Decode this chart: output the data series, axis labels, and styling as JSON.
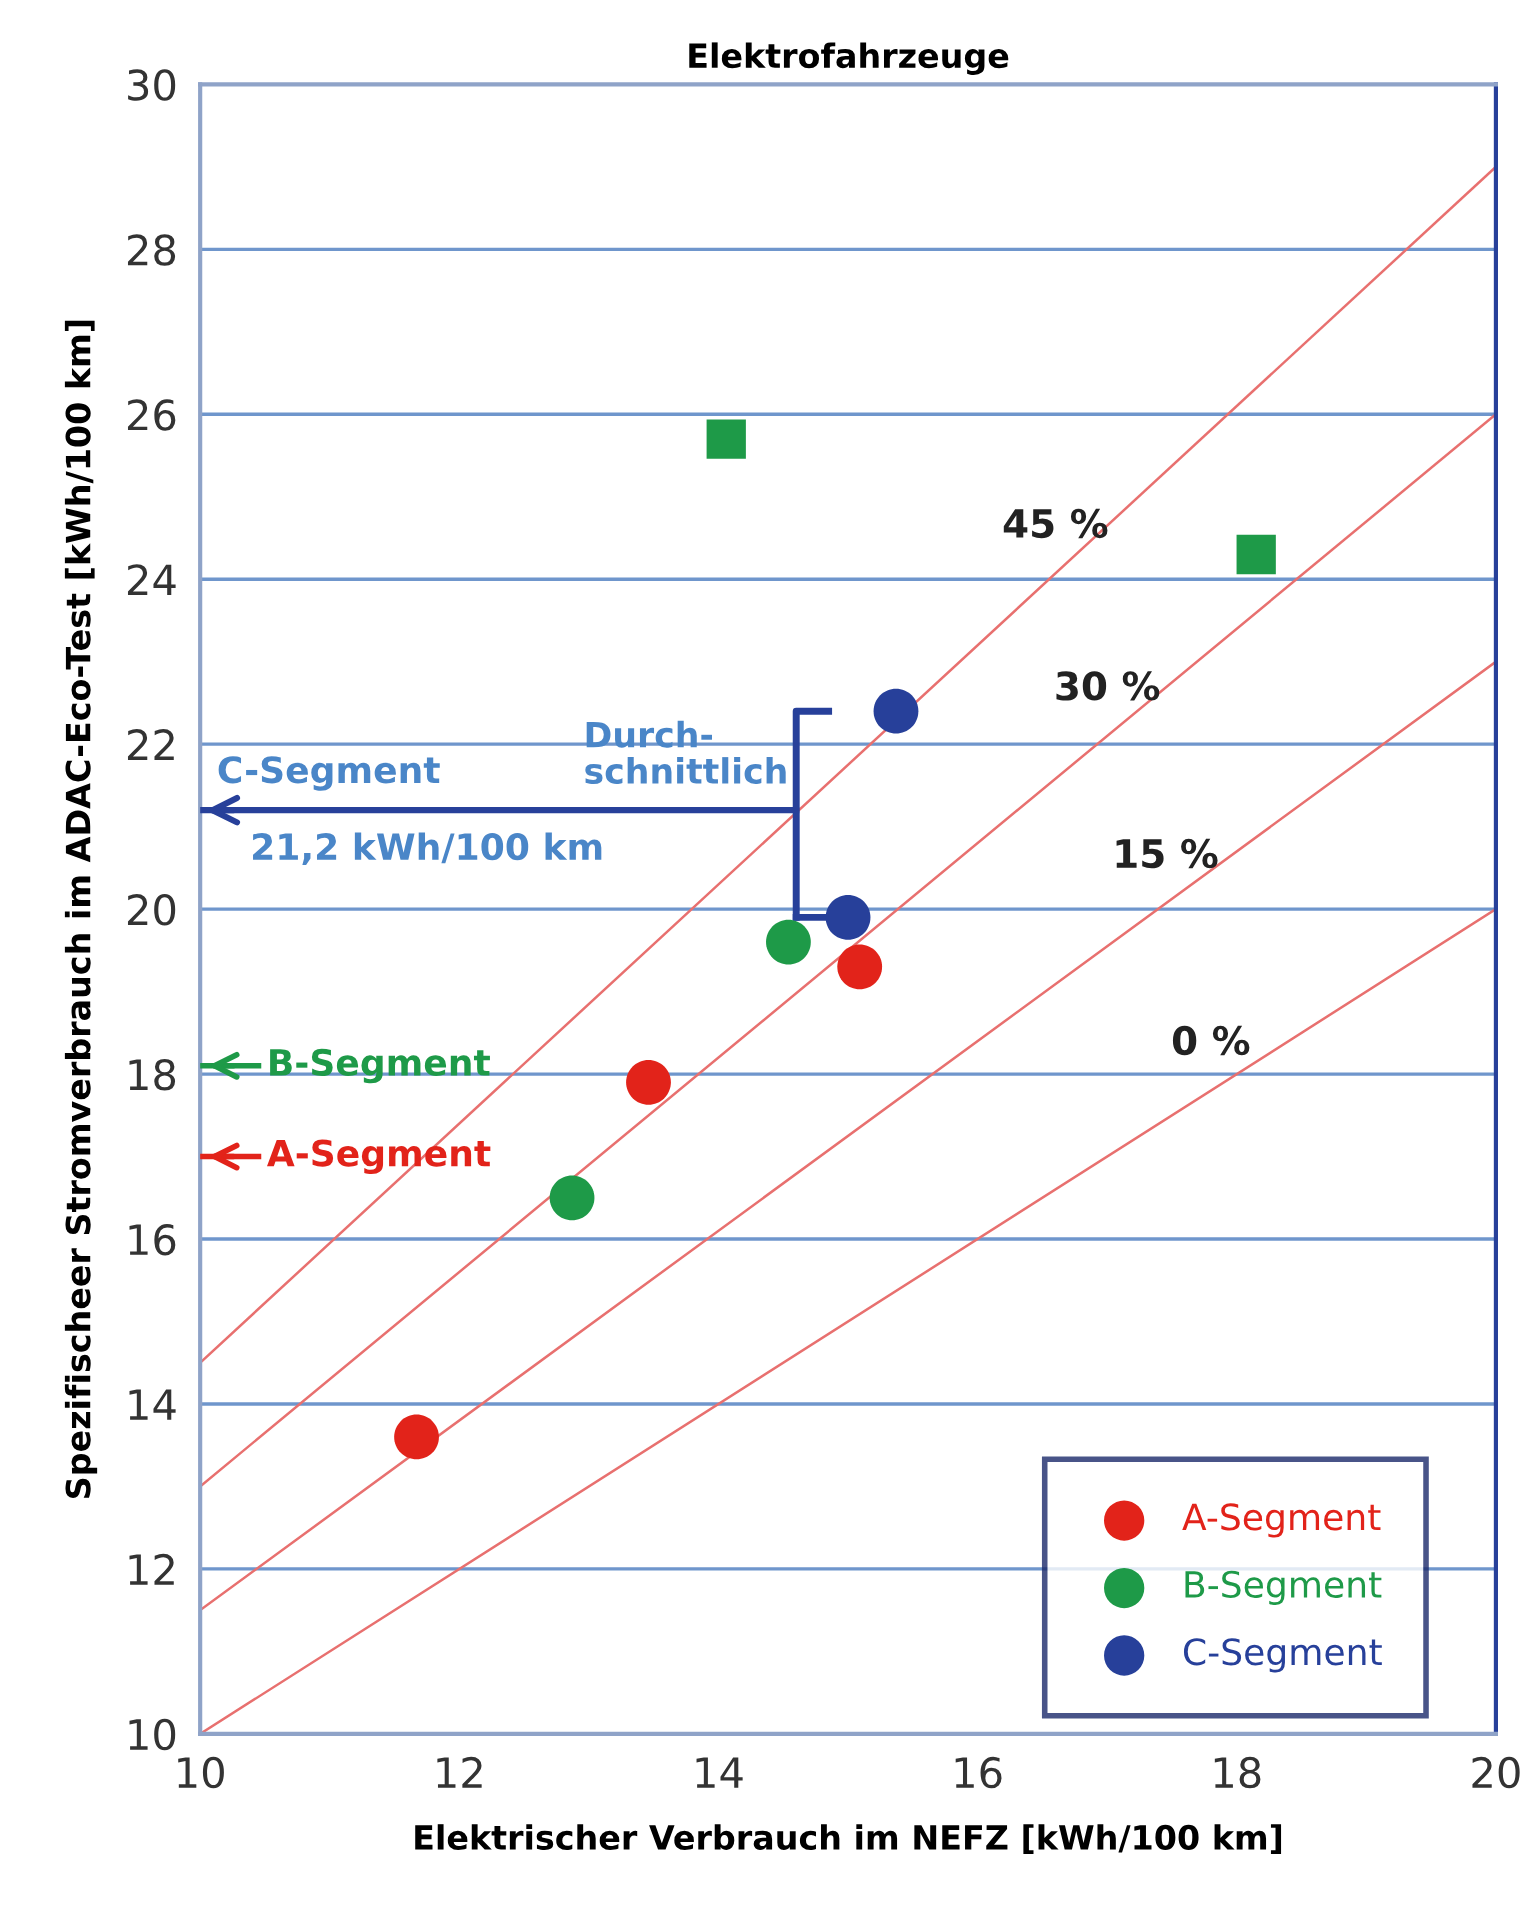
{
  "chart_data": {
    "type": "scatter",
    "title": "Elektrofahrzeuge",
    "xlabel": "Elektrischer Verbrauch im NEFZ [kWh/100 km]",
    "ylabel": "Spezifischeer Stromverbrauch im ADAC-Eco-Test [kWh/100 km]",
    "xlim": [
      10,
      20
    ],
    "ylim": [
      10,
      30
    ],
    "xticks": [
      10,
      12,
      14,
      16,
      18,
      20
    ],
    "yticks": [
      10,
      12,
      14,
      16,
      18,
      20,
      22,
      24,
      26,
      28,
      30
    ],
    "grid": "y",
    "legend": "bottom right",
    "series": [
      {
        "type": "line",
        "color": "#e8706f",
        "x": [
          10,
          20
        ],
        "values": [
          10,
          20
        ]
      },
      {
        "type": "line",
        "color": "#e8706f",
        "x": [
          10,
          20
        ],
        "values": [
          11.5,
          23
        ]
      },
      {
        "type": "line",
        "color": "#e8706f",
        "x": [
          10,
          20
        ],
        "values": [
          13,
          26
        ]
      },
      {
        "type": "line",
        "color": "#e8706f",
        "x": [
          10,
          20
        ],
        "values": [
          14.5,
          29
        ]
      },
      {
        "name": "A-Segment",
        "color": "#e2231a",
        "marker": "circle",
        "x": [
          11.67,
          13.46,
          15.09
        ],
        "values": [
          13.6,
          17.9,
          19.3
        ]
      },
      {
        "name": "B-Segment",
        "color": "#1e9a48",
        "marker": "circle",
        "x": [
          12.87,
          14.54
        ],
        "values": [
          16.5,
          19.6
        ]
      },
      {
        "name": "C-Segment",
        "color": "#27409a",
        "marker": "circle",
        "x": [
          15.37,
          15.0
        ],
        "values": [
          22.4,
          19.9
        ]
      },
      {
        "color": "#1e9a48",
        "marker": "square",
        "x": [
          14.06,
          18.15
        ],
        "values": [
          25.7,
          24.3
        ]
      }
    ],
    "ref_lines": [
      {
        "axis": "y",
        "value": 21.2,
        "label": "21,2 kWh/100 km",
        "color": "#27409a"
      },
      {
        "axis": "y",
        "value": 18.1,
        "label": "B-Segment",
        "color": "#1e9a48"
      },
      {
        "axis": "y",
        "value": 17.0,
        "label": "A-Segment",
        "color": "#e2231a"
      }
    ],
    "annotations": [
      "0 %",
      "15 %",
      "30 %",
      "45 %",
      "C-Segment",
      "Durch-\nschnittlich"
    ]
  }
}
